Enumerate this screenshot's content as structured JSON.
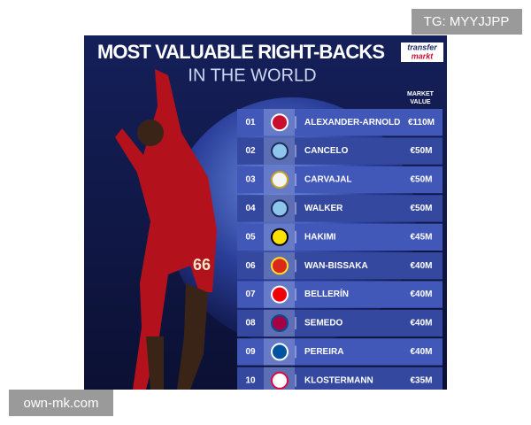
{
  "watermark_top": "TG: MYYJJPP",
  "watermark_bottom": "own-mk.com",
  "header": {
    "title": "MOST VALUABLE RIGHT-BACKS",
    "subtitle": "IN THE WORLD",
    "logo": [
      "transfer",
      "markt"
    ],
    "column_label": [
      "MARKET",
      "VALUE"
    ]
  },
  "player_number": "66",
  "table": {
    "rows": [
      [
        "01",
        "ALEXANDER-ARNOLD",
        "€110M"
      ],
      [
        "02",
        "CANCELO",
        "€50M"
      ],
      [
        "03",
        "CARVAJAL",
        "€50M"
      ],
      [
        "04",
        "WALKER",
        "€50M"
      ],
      [
        "05",
        "HAKIMI",
        "€45M"
      ],
      [
        "06",
        "WAN-BISSAKA",
        "€40M"
      ],
      [
        "07",
        "BELLERÍN",
        "€40M"
      ],
      [
        "08",
        "SEMEDO",
        "€40M"
      ],
      [
        "09",
        "PEREIRA",
        "€40M"
      ],
      [
        "10",
        "KLOSTERMANN",
        "€35M"
      ]
    ]
  }
}
